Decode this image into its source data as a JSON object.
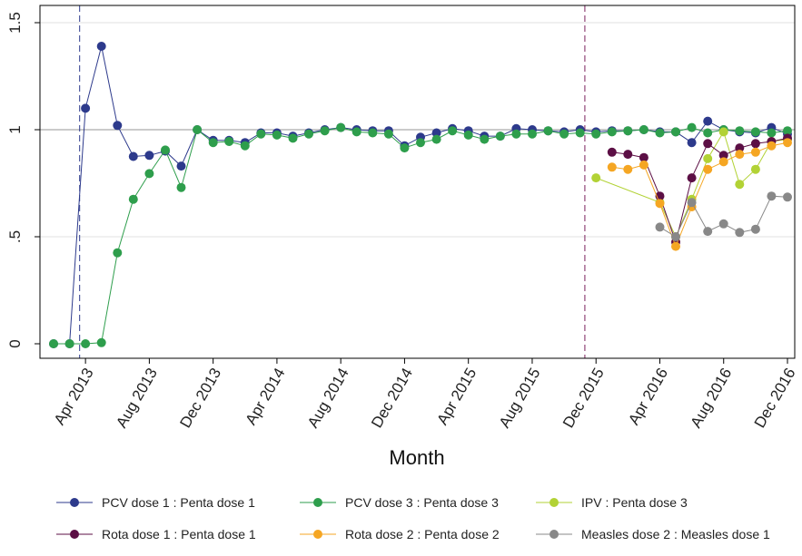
{
  "chart_data": {
    "type": "line",
    "xlabel": "Month",
    "ylabel": "",
    "ylim": [
      0,
      1.55
    ],
    "y_ticks": [
      {
        "value": 0,
        "label": "0"
      },
      {
        "value": 0.5,
        "label": ".5"
      },
      {
        "value": 1,
        "label": "1"
      },
      {
        "value": 1.5,
        "label": "1.5"
      }
    ],
    "x_range": [
      "2013-02",
      "2017-01"
    ],
    "x_ticks": [
      {
        "month": "2013-04",
        "label": "Apr 2013"
      },
      {
        "month": "2013-08",
        "label": "Aug 2013"
      },
      {
        "month": "2013-12",
        "label": "Dec 2013"
      },
      {
        "month": "2014-04",
        "label": "Apr 2014"
      },
      {
        "month": "2014-08",
        "label": "Aug 2014"
      },
      {
        "month": "2014-12",
        "label": "Dec 2014"
      },
      {
        "month": "2015-04",
        "label": "Apr 2015"
      },
      {
        "month": "2015-08",
        "label": "Aug 2015"
      },
      {
        "month": "2015-12",
        "label": "Dec 2015"
      },
      {
        "month": "2016-04",
        "label": "Apr 2016"
      },
      {
        "month": "2016-08",
        "label": "Aug 2016"
      },
      {
        "month": "2016-12",
        "label": "Dec 2016"
      }
    ],
    "reference_hline": 1,
    "vlines": [
      "2013-03-20",
      "2015-11-10"
    ],
    "grid": true,
    "legend_position": "bottom",
    "series": [
      {
        "name": "PCV dose 1 : Penta dose 1",
        "color": "#2d3a8c",
        "points": [
          [
            "2013-02",
            0
          ],
          [
            "2013-03",
            0
          ],
          [
            "2013-04",
            1.1
          ],
          [
            "2013-05",
            1.39
          ],
          [
            "2013-06",
            1.02
          ],
          [
            "2013-07",
            0.875
          ],
          [
            "2013-08",
            0.88
          ],
          [
            "2013-09",
            0.9
          ],
          [
            "2013-10",
            0.83
          ],
          [
            "2013-11",
            1.0
          ],
          [
            "2013-12",
            0.95
          ],
          [
            "2014-01",
            0.95
          ],
          [
            "2014-02",
            0.94
          ],
          [
            "2014-03",
            0.985
          ],
          [
            "2014-04",
            0.985
          ],
          [
            "2014-05",
            0.97
          ],
          [
            "2014-06",
            0.985
          ],
          [
            "2014-07",
            1.0
          ],
          [
            "2014-08",
            1.01
          ],
          [
            "2014-09",
            1.0
          ],
          [
            "2014-10",
            0.995
          ],
          [
            "2014-11",
            0.995
          ],
          [
            "2014-12",
            0.925
          ],
          [
            "2015-01",
            0.965
          ],
          [
            "2015-02",
            0.985
          ],
          [
            "2015-03",
            1.005
          ],
          [
            "2015-04",
            0.995
          ],
          [
            "2015-05",
            0.97
          ],
          [
            "2015-06",
            0.97
          ],
          [
            "2015-07",
            1.005
          ],
          [
            "2015-08",
            1.0
          ],
          [
            "2015-09",
            0.995
          ],
          [
            "2015-10",
            0.99
          ],
          [
            "2015-11",
            1.0
          ],
          [
            "2015-12",
            0.99
          ],
          [
            "2016-01",
            0.995
          ],
          [
            "2016-02",
            0.995
          ],
          [
            "2016-03",
            1.0
          ],
          [
            "2016-04",
            0.99
          ],
          [
            "2016-05",
            0.99
          ],
          [
            "2016-06",
            0.94
          ],
          [
            "2016-07",
            1.04
          ],
          [
            "2016-08",
            1.0
          ],
          [
            "2016-09",
            0.99
          ],
          [
            "2016-10",
            0.985
          ],
          [
            "2016-11",
            1.01
          ],
          [
            "2016-12",
            0.98
          ]
        ]
      },
      {
        "name": "PCV dose 3 : Penta dose 3",
        "color": "#2e9e4c",
        "points": [
          [
            "2013-02",
            0
          ],
          [
            "2013-03",
            0
          ],
          [
            "2013-04",
            0
          ],
          [
            "2013-05",
            0.005
          ],
          [
            "2013-06",
            0.425
          ],
          [
            "2013-07",
            0.675
          ],
          [
            "2013-08",
            0.795
          ],
          [
            "2013-09",
            0.905
          ],
          [
            "2013-10",
            0.73
          ],
          [
            "2013-11",
            1.0
          ],
          [
            "2013-12",
            0.94
          ],
          [
            "2014-01",
            0.945
          ],
          [
            "2014-02",
            0.925
          ],
          [
            "2014-03",
            0.98
          ],
          [
            "2014-04",
            0.975
          ],
          [
            "2014-05",
            0.96
          ],
          [
            "2014-06",
            0.98
          ],
          [
            "2014-07",
            0.995
          ],
          [
            "2014-08",
            1.01
          ],
          [
            "2014-09",
            0.99
          ],
          [
            "2014-10",
            0.985
          ],
          [
            "2014-11",
            0.98
          ],
          [
            "2014-12",
            0.915
          ],
          [
            "2015-01",
            0.94
          ],
          [
            "2015-02",
            0.955
          ],
          [
            "2015-03",
            0.995
          ],
          [
            "2015-04",
            0.975
          ],
          [
            "2015-05",
            0.955
          ],
          [
            "2015-06",
            0.97
          ],
          [
            "2015-07",
            0.98
          ],
          [
            "2015-08",
            0.98
          ],
          [
            "2015-09",
            0.995
          ],
          [
            "2015-10",
            0.98
          ],
          [
            "2015-11",
            0.985
          ],
          [
            "2015-12",
            0.98
          ],
          [
            "2016-01",
            0.99
          ],
          [
            "2016-02",
            0.995
          ],
          [
            "2016-03",
            1.0
          ],
          [
            "2016-04",
            0.985
          ],
          [
            "2016-05",
            0.99
          ],
          [
            "2016-06",
            1.01
          ],
          [
            "2016-07",
            0.985
          ],
          [
            "2016-08",
            1.0
          ],
          [
            "2016-09",
            0.995
          ],
          [
            "2016-10",
            0.99
          ],
          [
            "2016-11",
            0.985
          ],
          [
            "2016-12",
            0.995
          ]
        ]
      },
      {
        "name": "IPV : Penta dose 3",
        "color": "#b2d235",
        "points": [
          [
            "2015-12",
            0.775
          ],
          [
            "2016-04",
            0.66
          ],
          [
            "2016-05",
            0.5
          ],
          [
            "2016-06",
            0.675
          ],
          [
            "2016-07",
            0.865
          ],
          [
            "2016-08",
            0.99
          ],
          [
            "2016-09",
            0.745
          ],
          [
            "2016-10",
            0.815
          ],
          [
            "2016-11",
            0.945
          ],
          [
            "2016-12",
            0.955
          ]
        ]
      },
      {
        "name": "Rota dose 1 : Penta dose 1",
        "color": "#5c0f45",
        "points": [
          [
            "2016-01",
            0.895
          ],
          [
            "2016-02",
            0.885
          ],
          [
            "2016-03",
            0.87
          ],
          [
            "2016-04",
            0.69
          ],
          [
            "2016-05",
            0.475
          ],
          [
            "2016-06",
            0.775
          ],
          [
            "2016-07",
            0.935
          ],
          [
            "2016-08",
            0.88
          ],
          [
            "2016-09",
            0.915
          ],
          [
            "2016-10",
            0.935
          ],
          [
            "2016-11",
            0.945
          ],
          [
            "2016-12",
            0.96
          ]
        ]
      },
      {
        "name": "Rota dose 2 : Penta dose 2",
        "color": "#f5a623",
        "points": [
          [
            "2016-01",
            0.825
          ],
          [
            "2016-02",
            0.815
          ],
          [
            "2016-03",
            0.835
          ],
          [
            "2016-04",
            0.655
          ],
          [
            "2016-05",
            0.455
          ],
          [
            "2016-06",
            0.64
          ],
          [
            "2016-07",
            0.815
          ],
          [
            "2016-08",
            0.85
          ],
          [
            "2016-09",
            0.885
          ],
          [
            "2016-10",
            0.895
          ],
          [
            "2016-11",
            0.925
          ],
          [
            "2016-12",
            0.94
          ]
        ]
      },
      {
        "name": "Measles dose 2 : Measles dose 1",
        "color": "#888888",
        "points": [
          [
            "2016-04",
            0.545
          ],
          [
            "2016-05",
            0.5
          ],
          [
            "2016-06",
            0.66
          ],
          [
            "2016-07",
            0.525
          ],
          [
            "2016-08",
            0.56
          ],
          [
            "2016-09",
            0.52
          ],
          [
            "2016-10",
            0.535
          ],
          [
            "2016-11",
            0.69
          ],
          [
            "2016-12",
            0.685
          ]
        ]
      }
    ]
  }
}
